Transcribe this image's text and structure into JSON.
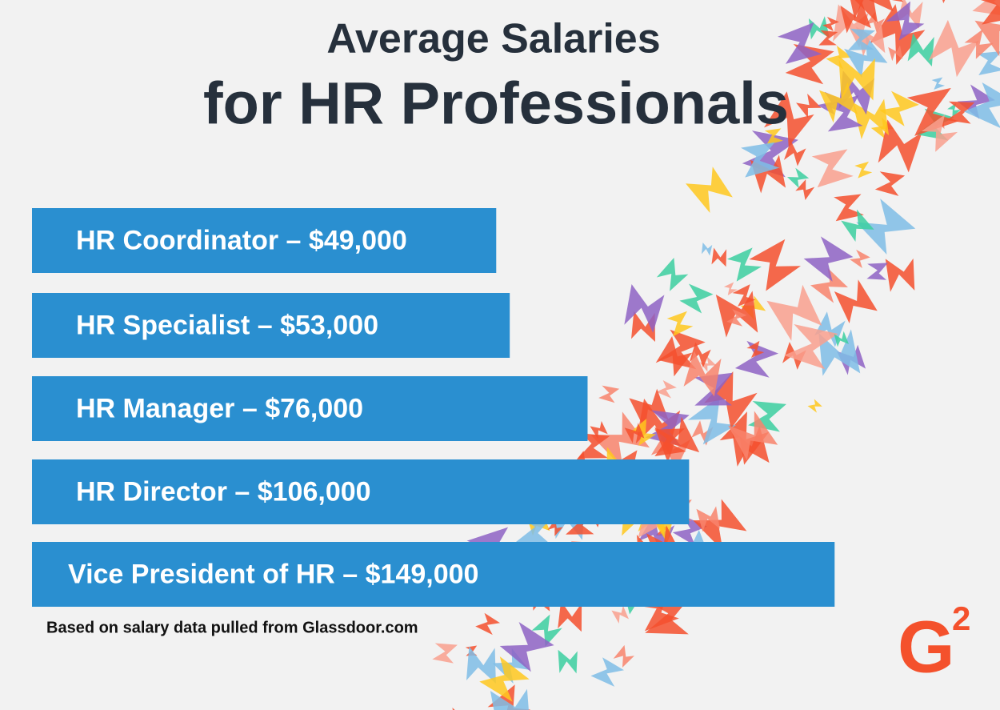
{
  "chart_data": {
    "type": "bar",
    "orientation": "horizontal",
    "title": "Average Salaries",
    "subtitle": "for HR Professionals",
    "categories": [
      "HR Coordinator –",
      "HR Specialist –",
      "HR Manager –",
      "HR Director –",
      "Vice President of HR –"
    ],
    "values": [
      49000,
      53000,
      76000,
      106000,
      149000
    ],
    "value_labels": [
      "$49,000",
      "$53,000",
      "$76,000",
      "$106,000",
      "$149,000"
    ],
    "color": "#2a8fd0",
    "note": "Based on salary data pulled from Glassdoor.com",
    "logo": {
      "main": "G",
      "sup": "2"
    }
  }
}
